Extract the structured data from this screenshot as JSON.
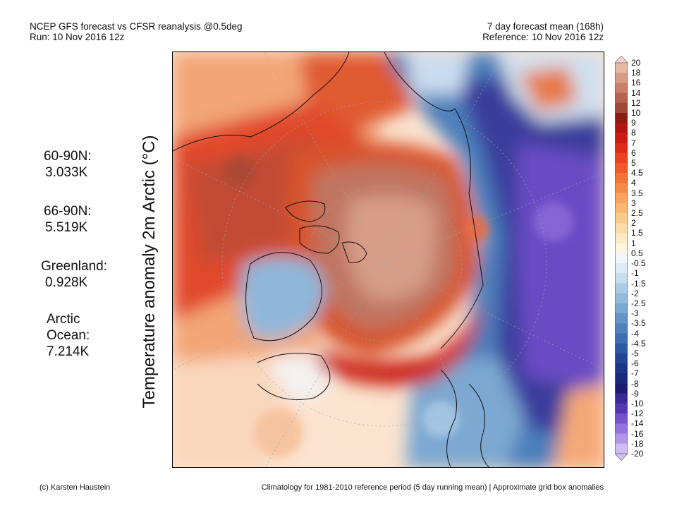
{
  "header": {
    "title_line1": "NCEP GFS forecast vs CFSR reanalysis @0.5deg",
    "title_line2": "Run: 10 Nov 2016 12z",
    "right_line1": "7 day forecast mean (168h)",
    "right_line2": "Reference: 10 Nov 2016 12z"
  },
  "vertical_label": "Temperature anomaly 2m Arctic (°C)",
  "stats": [
    {
      "lines": [
        "60-90N:",
        "3.033K"
      ]
    },
    {
      "lines": [
        "66-90N:",
        "5.519K"
      ]
    },
    {
      "lines": [
        "Greenland:",
        "0.928K"
      ]
    },
    {
      "lines": [
        "Arctic",
        "Ocean:",
        "7.214K"
      ]
    }
  ],
  "colorbar": {
    "labels": [
      "20",
      "18",
      "16",
      "14",
      "12",
      "10",
      "9",
      "8",
      "7",
      "6",
      "5",
      "4.5",
      "4",
      "3.5",
      "3",
      "2.5",
      "2",
      "1.5",
      "1",
      "0.5",
      "-0.5",
      "-1",
      "-1.5",
      "-2",
      "-2.5",
      "-3",
      "-3.5",
      "-4",
      "-4.5",
      "-5",
      "-6",
      "-7",
      "-8",
      "-9",
      "-10",
      "-12",
      "-14",
      "-16",
      "-18",
      "-20"
    ],
    "colors": [
      "#f5d5c8",
      "#e6b7a5",
      "#d89c86",
      "#c9806a",
      "#b5644e",
      "#9c4a37",
      "#8a1d14",
      "#b0150f",
      "#cc1c12",
      "#df2a17",
      "#ea4120",
      "#f05a2a",
      "#f47338",
      "#f68b48",
      "#f8a35e",
      "#f9b874",
      "#fbcb8d",
      "#fcdca9",
      "#fdeac6",
      "#fff5e0",
      "#f0f6fb",
      "#dbeaf5",
      "#c4dcee",
      "#abcbe5",
      "#93badb",
      "#7ba8d1",
      "#6495c6",
      "#4f82bb",
      "#3c6eb0",
      "#2c5aa4",
      "#224594",
      "#1d3585",
      "#1b2a78",
      "#1d1d6d",
      "#3a2a95",
      "#5637b3",
      "#7752cd",
      "#9573de",
      "#b296ea",
      "#d0bdf4"
    ]
  },
  "footer": {
    "left": "(c) Karsten Haustein",
    "right": "Climatology for 1981-2010 reference period (5 day running mean) | Approximate grid box anomalies"
  }
}
